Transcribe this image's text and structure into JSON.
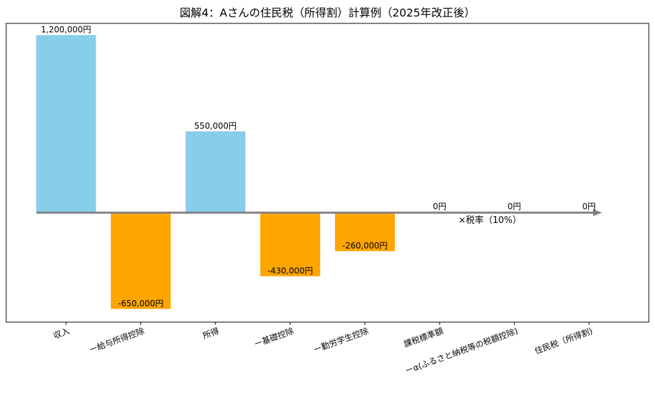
{
  "chart_data": {
    "type": "bar",
    "title": "図解4：Aさんの住民税（所得割）計算例（2025年改正後）",
    "xlabel": "",
    "ylabel": "",
    "ylim": [
      -850000,
      1300000
    ],
    "grid": false,
    "legend": "none",
    "categories": [
      "収入",
      "ー給与所得控除",
      "所得",
      "ー基礎控除",
      "ー勤労学生控除",
      "課税標準額",
      "ーα(ふるさと納税等の税額控除)",
      "住民税（所得割)"
    ],
    "values": [
      1200000,
      -650000,
      550000,
      -430000,
      -260000,
      0,
      0,
      0
    ],
    "data_labels": [
      "1,200,000円",
      "-650,000円",
      "550,000円",
      "-430,000円",
      "-260,000円",
      "0円",
      "0円",
      "0円"
    ],
    "annotation": "×税率（10%）",
    "colors": {
      "positive": "#87ceeb",
      "negative": "#ffa500",
      "axis": "#808080"
    }
  }
}
